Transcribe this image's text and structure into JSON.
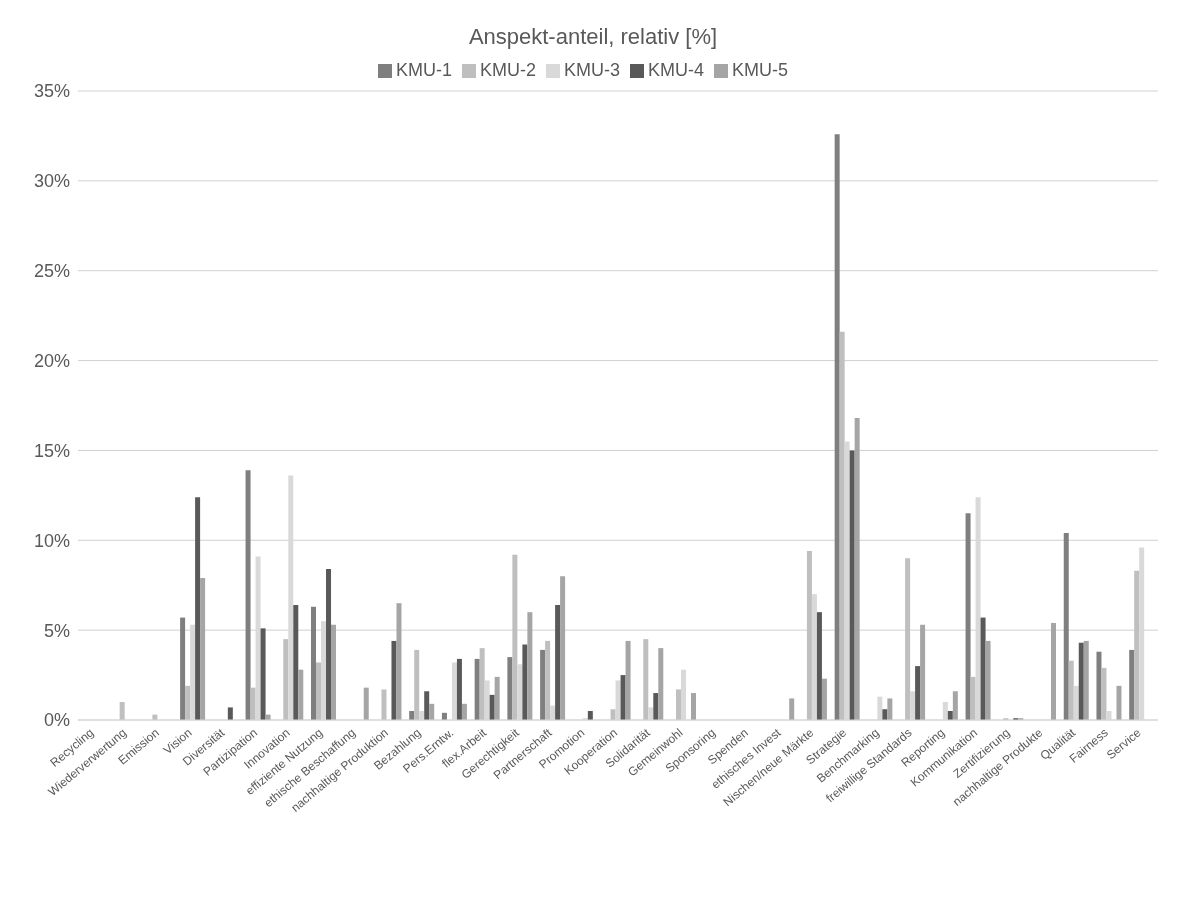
{
  "chart_data": {
    "type": "bar",
    "title": "Anspekt-anteil, relativ [%]",
    "categories": [
      "Recycling",
      "Wiederverwertung",
      "Emission",
      "Vision",
      "Diversität",
      "Partizipation",
      "Innovation",
      "effiziente Nutzung",
      "ethische Beschaffung",
      "nachhaltige Produktion",
      "Bezahlung",
      "Pers.Erntw.",
      "flex.Arbeit",
      "Gerechtigkeit",
      "Partnerschaft",
      "Promotion",
      "Kooperation",
      "Solidarität",
      "Gemeinwohl",
      "Sponsoring",
      "Spenden",
      "ethisches Invest",
      "Nischen/neue Märkte",
      "Strategie",
      "Benchmarking",
      "freiwillige Standards",
      "Reporting",
      "Kommunikation",
      "Zertifizierung",
      "nachhaltige Produkte",
      "Qualität",
      "Fairness",
      "Service"
    ],
    "series": [
      {
        "name": "KMU-1",
        "color": "#7f7f7f",
        "values": [
          0,
          0,
          0,
          5.7,
          0,
          13.9,
          0,
          6.3,
          0,
          0,
          0.5,
          0.4,
          3.4,
          3.5,
          3.9,
          0,
          0,
          0,
          0,
          0,
          0,
          0,
          0,
          32.6,
          0,
          0,
          0,
          11.5,
          0,
          0,
          10.4,
          3.8,
          3.9
        ]
      },
      {
        "name": "KMU-2",
        "color": "#bfbfbf",
        "values": [
          0,
          1.0,
          0.3,
          1.9,
          0,
          1.8,
          4.5,
          3.2,
          0,
          1.7,
          3.9,
          0,
          4.0,
          9.2,
          4.4,
          0,
          0.6,
          4.5,
          1.7,
          0,
          0,
          0,
          9.4,
          21.6,
          0,
          9.0,
          0,
          2.4,
          0.1,
          0,
          3.3,
          2.9,
          8.3
        ]
      },
      {
        "name": "KMU-3",
        "color": "#d9d9d9",
        "values": [
          0,
          0,
          0,
          5.3,
          0,
          9.1,
          13.6,
          5.5,
          0,
          0,
          0.5,
          3.2,
          2.2,
          3.1,
          0.8,
          0.1,
          2.2,
          0.7,
          2.8,
          0,
          0,
          0,
          7.0,
          15.5,
          1.3,
          1.6,
          1.0,
          12.4,
          0,
          0,
          1.9,
          0.5,
          9.6
        ]
      },
      {
        "name": "KMU-4",
        "color": "#595959",
        "values": [
          0,
          0,
          0,
          12.4,
          0.7,
          5.1,
          6.4,
          8.4,
          0,
          4.4,
          1.6,
          3.4,
          1.4,
          4.2,
          6.4,
          0.5,
          2.5,
          1.5,
          0,
          0,
          0,
          0,
          6.0,
          15.0,
          0.6,
          3.0,
          0.5,
          5.7,
          0.1,
          0,
          4.3,
          0,
          0
        ]
      },
      {
        "name": "KMU-5",
        "color": "#a5a5a5",
        "values": [
          0,
          0,
          0,
          7.9,
          0,
          0.3,
          2.8,
          5.3,
          1.8,
          6.5,
          0.9,
          0.9,
          2.4,
          6.0,
          8.0,
          0,
          4.4,
          4.0,
          1.5,
          0,
          0,
          1.2,
          2.3,
          16.8,
          1.2,
          5.3,
          1.6,
          4.4,
          0.1,
          5.4,
          4.4,
          1.9,
          0
        ]
      }
    ],
    "ylim": [
      0,
      35
    ],
    "yticks": [
      {
        "value": 0,
        "label": "0%"
      },
      {
        "value": 5,
        "label": "5%"
      },
      {
        "value": 10,
        "label": "10%"
      },
      {
        "value": 15,
        "label": "15%"
      },
      {
        "value": 20,
        "label": "20%"
      },
      {
        "value": 25,
        "label": "25%"
      },
      {
        "value": 30,
        "label": "30%"
      },
      {
        "value": 35,
        "label": "35%"
      }
    ],
    "grid": "y",
    "legend": "top"
  }
}
